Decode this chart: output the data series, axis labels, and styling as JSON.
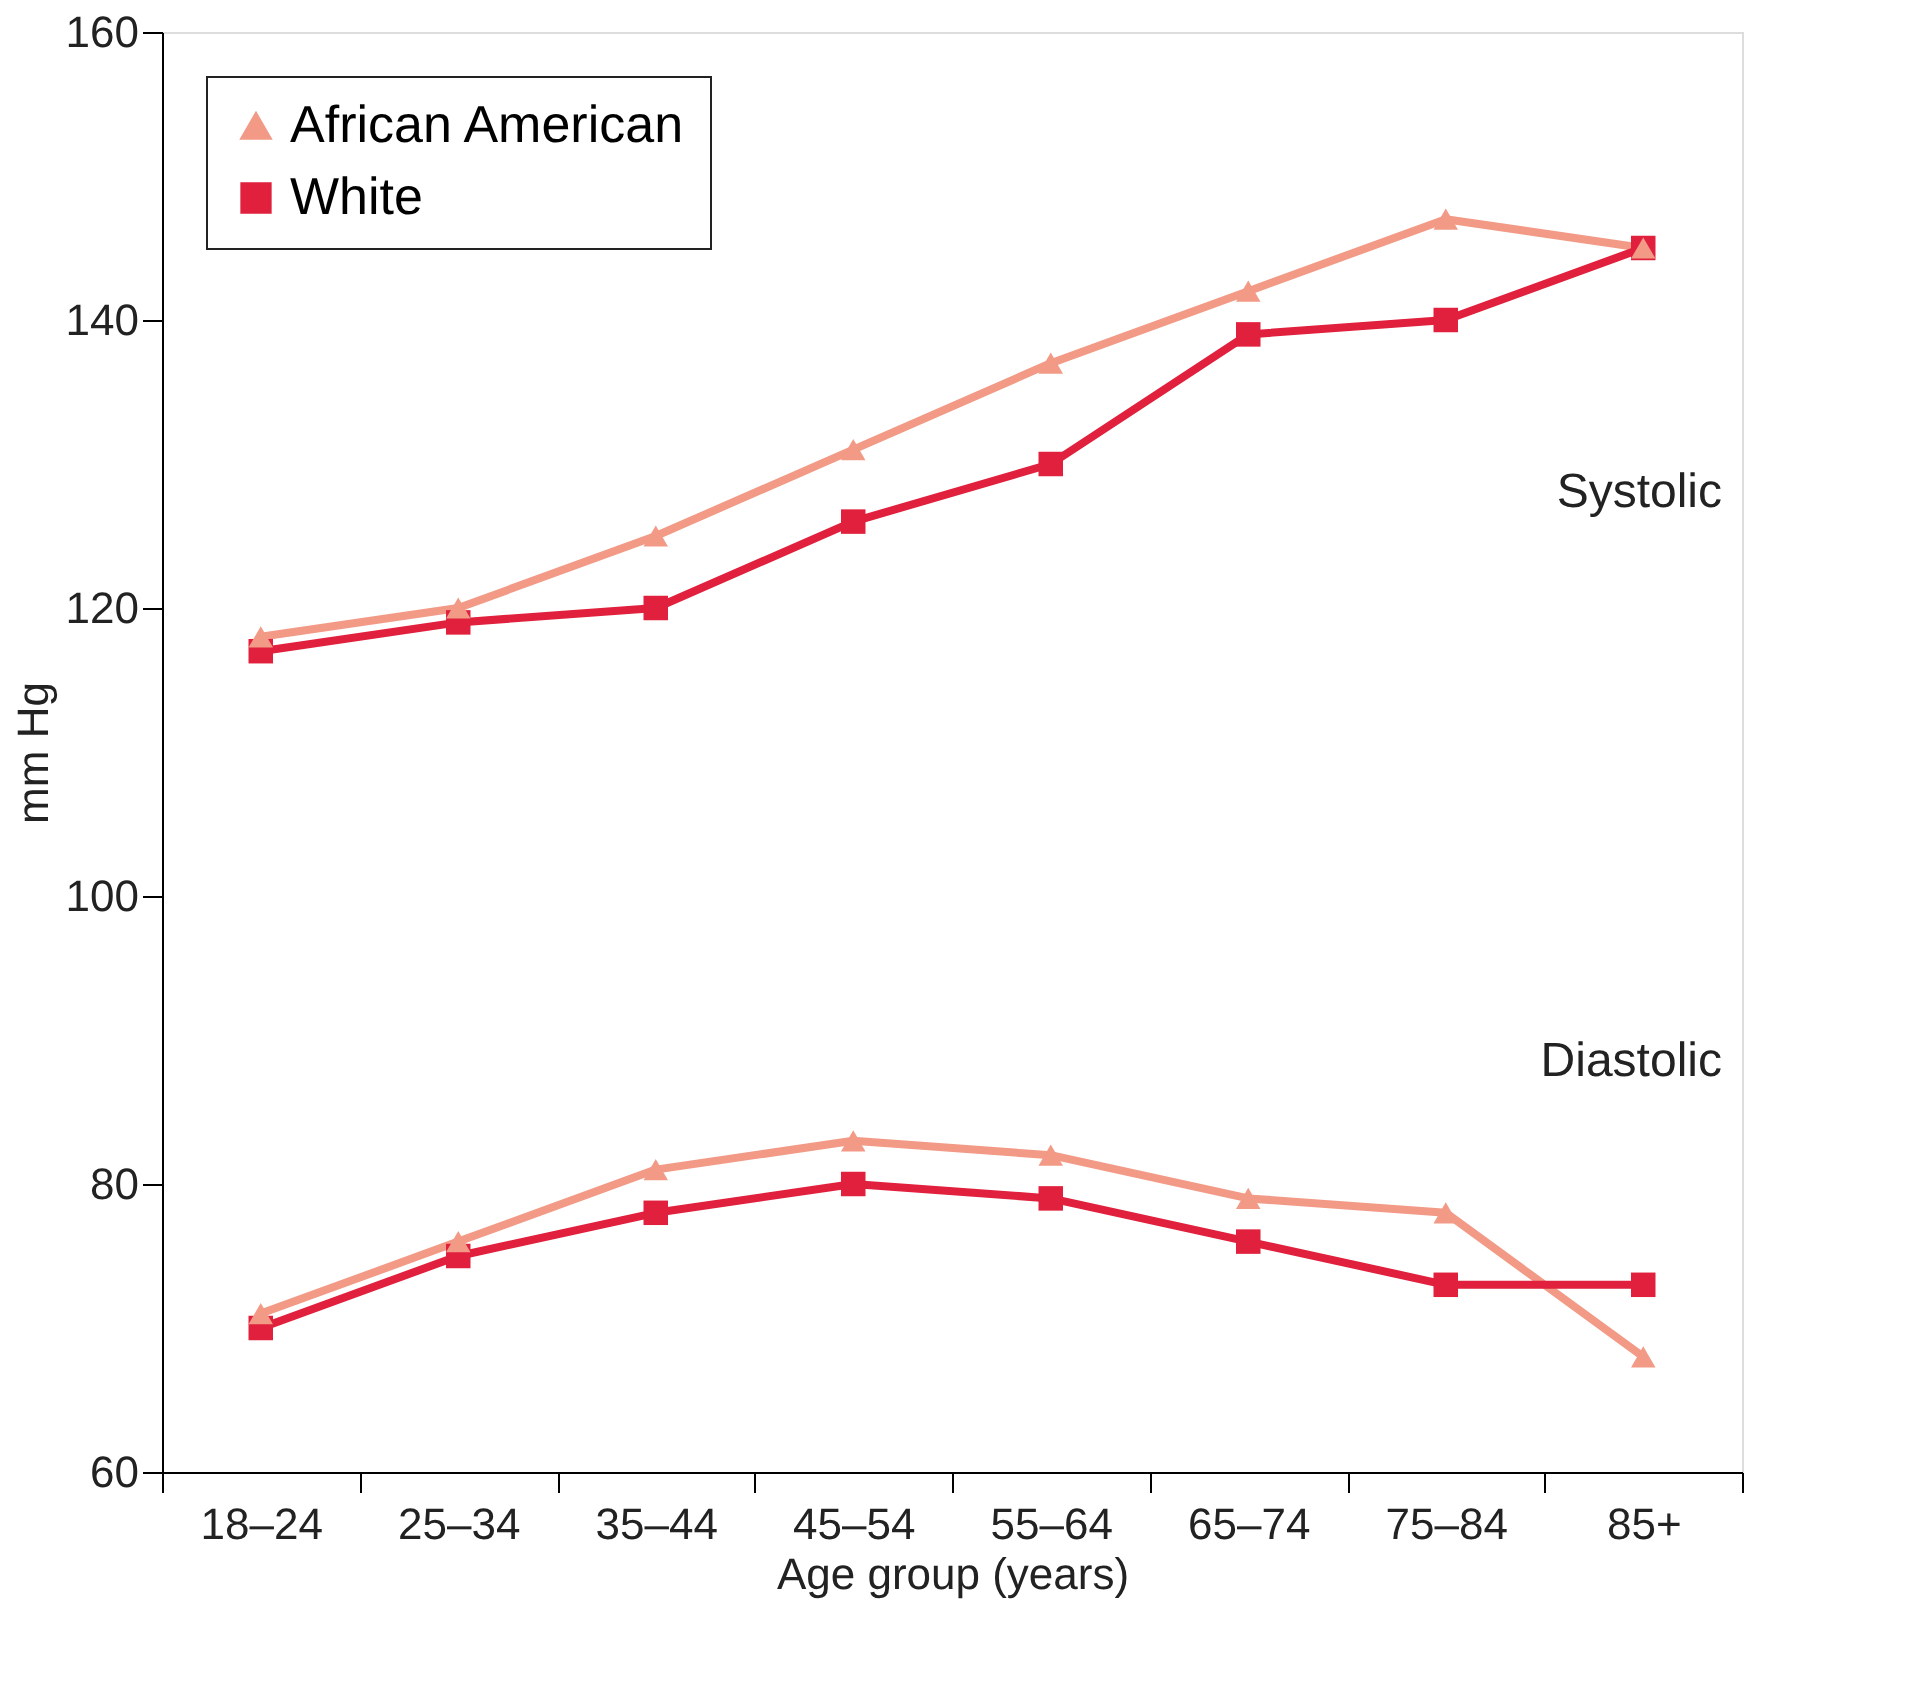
{
  "chart_data": {
    "type": "line",
    "xlabel": "Age group (years)",
    "ylabel": "mm Hg",
    "categories": [
      "18–24",
      "25–34",
      "35–44",
      "45–54",
      "55–64",
      "65–74",
      "75–84",
      "85+"
    ],
    "series": [
      {
        "name": "African American",
        "color": "#f29a86",
        "marker": "triangle",
        "values": [
          118,
          120,
          125,
          131,
          137,
          142,
          147,
          145
        ]
      },
      {
        "name": "White",
        "color": "#e0203c",
        "marker": "square",
        "values": [
          117,
          119,
          120,
          126,
          130,
          139,
          140,
          145
        ]
      },
      {
        "color": "#f29a86",
        "marker": "triangle",
        "values": [
          71,
          76,
          81,
          83,
          82,
          79,
          78,
          68
        ]
      },
      {
        "color": "#e0203c",
        "marker": "square",
        "values": [
          70,
          75,
          78,
          80,
          79,
          76,
          73,
          73
        ]
      }
    ],
    "ylim": [
      60,
      160
    ],
    "yticks": [
      60,
      80,
      100,
      120,
      140,
      160
    ],
    "annotations": [
      "Systolic",
      "Diastolic"
    ],
    "legend": "top left",
    "grid": false,
    "line_style": "solid"
  }
}
